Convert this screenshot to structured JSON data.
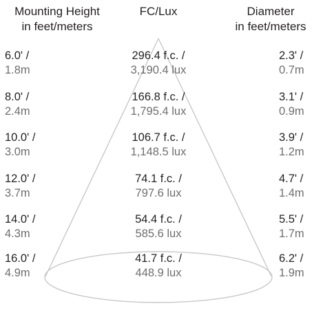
{
  "headers": {
    "mounting_height": [
      "Mounting Height",
      "in feet/meters"
    ],
    "fc_lux": "FC/Lux",
    "diameter": [
      "Diameter",
      "in feet/meters"
    ]
  },
  "rows": [
    {
      "height_ft": "6.0' /",
      "height_m": "1.8m",
      "fc": "296.4 f.c. /",
      "lux": "3,190.4 lux",
      "diameter_ft": "2.3' /",
      "diameter_m": "0.7m"
    },
    {
      "height_ft": "8.0' /",
      "height_m": "2.4m",
      "fc": "166.8 f.c. /",
      "lux": "1,795.4 lux",
      "diameter_ft": "3.1' /",
      "diameter_m": "0.9m"
    },
    {
      "height_ft": "10.0' /",
      "height_m": "3.0m",
      "fc": "106.7 f.c. /",
      "lux": "1,148.5 lux",
      "diameter_ft": "3.9' /",
      "diameter_m": "1.2m"
    },
    {
      "height_ft": "12.0' /",
      "height_m": "3.7m",
      "fc": "74.1 f.c. /",
      "lux": "797.6 lux",
      "diameter_ft": "4.7' /",
      "diameter_m": "1.4m"
    },
    {
      "height_ft": "14.0' /",
      "height_m": "4.3m",
      "fc": "54.4 f.c. /",
      "lux": "585.6 lux",
      "diameter_ft": "5.5' /",
      "diameter_m": "1.7m"
    },
    {
      "height_ft": "16.0' /",
      "height_m": "4.9m",
      "fc": "41.7 f.c. /",
      "lux": "448.9 lux",
      "diameter_ft": "6.2' /",
      "diameter_m": "1.9m"
    }
  ],
  "colors": {
    "primary_text": "#231f20",
    "secondary_text": "#6d6e71",
    "cone_stroke": "#c8c8c8"
  }
}
